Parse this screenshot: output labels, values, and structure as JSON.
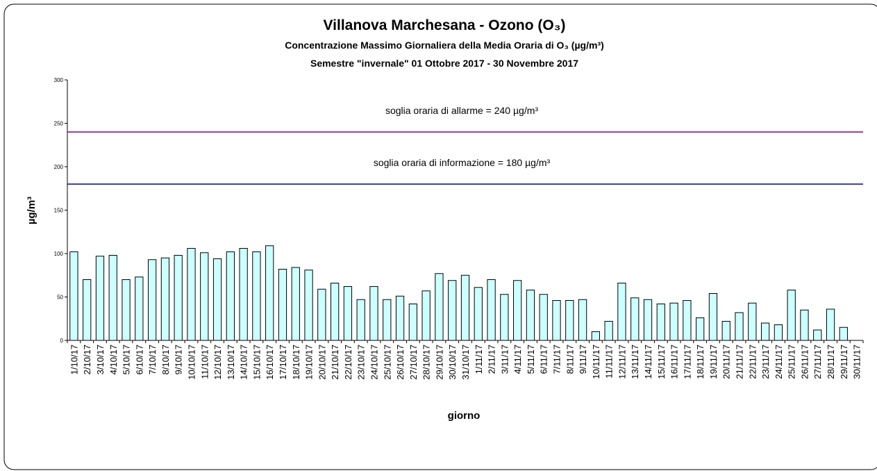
{
  "chart_data": {
    "type": "bar",
    "title": "Villanova Marchesana - Ozono (O₃)",
    "subtitle": [
      "Concentrazione  Massimo Giornaliera della Media Oraria di O₃ (µg/m³)",
      "Semestre \"invernale\" 01 Ottobre 2017 - 30 Novembre 2017"
    ],
    "xlabel": "giorno",
    "ylabel": "µg/m³",
    "categories": [
      "1/10/17",
      "2/10/17",
      "3/10/17",
      "4/10/17",
      "5/10/17",
      "6/10/17",
      "7/10/17",
      "8/10/17",
      "9/10/17",
      "10/10/17",
      "11/10/17",
      "12/10/17",
      "13/10/17",
      "14/10/17",
      "15/10/17",
      "16/10/17",
      "17/10/17",
      "18/10/17",
      "19/10/17",
      "20/10/17",
      "21/10/17",
      "22/10/17",
      "23/10/17",
      "24/10/17",
      "25/10/17",
      "26/10/17",
      "27/10/17",
      "28/10/17",
      "29/10/17",
      "30/10/17",
      "31/10/17",
      "1/11/17",
      "2/11/17",
      "3/11/17",
      "4/11/17",
      "5/11/17",
      "6/11/17",
      "7/11/17",
      "8/11/17",
      "9/11/17",
      "10/11/17",
      "11/11/17",
      "12/11/17",
      "13/11/17",
      "14/11/17",
      "15/11/17",
      "16/11/17",
      "17/11/17",
      "18/11/17",
      "19/11/17",
      "20/11/17",
      "21/11/17",
      "22/11/17",
      "23/11/17",
      "24/11/17",
      "25/11/17",
      "26/11/17",
      "27/11/17",
      "28/11/17",
      "29/11/17",
      "30/11/17"
    ],
    "values": [
      102,
      70,
      97,
      98,
      70,
      73,
      93,
      95,
      98,
      106,
      101,
      94,
      102,
      106,
      102,
      109,
      82,
      84,
      81,
      59,
      66,
      62,
      47,
      62,
      47,
      51,
      42,
      57,
      77,
      69,
      75,
      61,
      70,
      53,
      69,
      58,
      53,
      46,
      46,
      47,
      10,
      22,
      66,
      49,
      47,
      42,
      43,
      46,
      26,
      54,
      22,
      32,
      43,
      20,
      18,
      58,
      35,
      12,
      36,
      15,
      null
    ],
    "color": "#ccffff",
    "ylim": [
      0,
      300
    ],
    "yticks": [
      0,
      50,
      100,
      150,
      200,
      250,
      300
    ],
    "thresholds": [
      {
        "label": "soglia oraria di allarme = 240 µg/m³",
        "value": 240,
        "color": "#800080"
      },
      {
        "label": "soglia oraria di informazione = 180 µg/m³",
        "value": 180,
        "color": "#0000a0"
      }
    ]
  }
}
